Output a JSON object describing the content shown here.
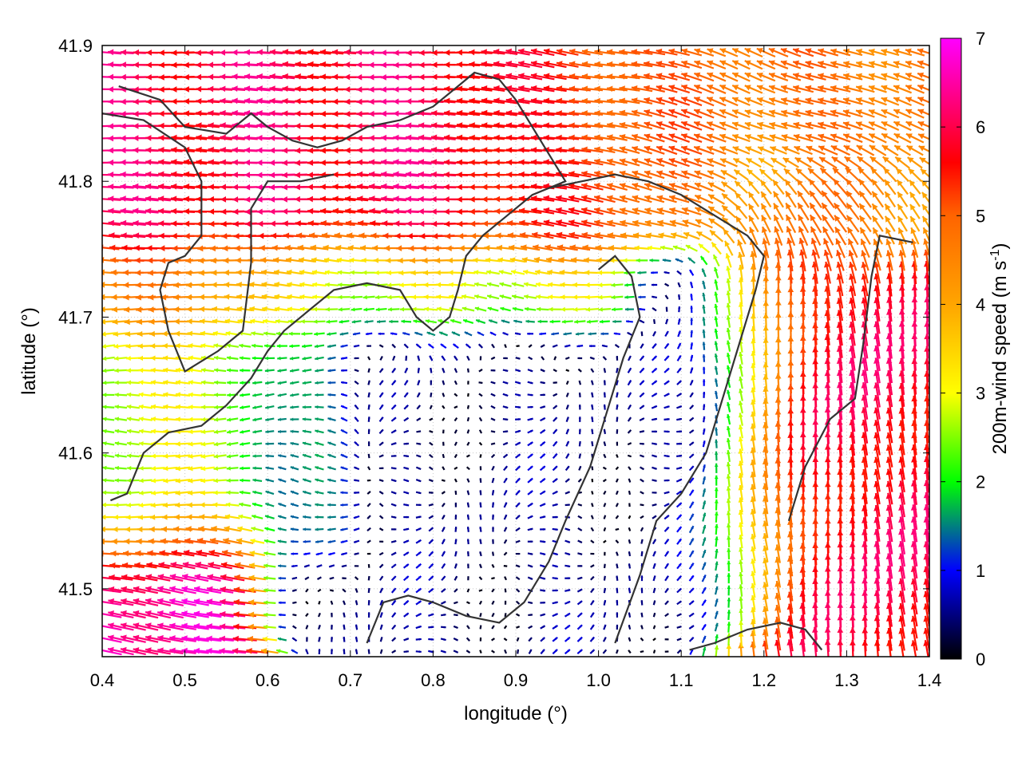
{
  "chart_data": {
    "type": "vector_field",
    "title": "",
    "xlabel": "longitude (°)",
    "ylabel": "latitude (°)",
    "xlim": [
      0.4,
      1.4
    ],
    "ylim": [
      41.45,
      41.9
    ],
    "x_ticks": [
      0.4,
      0.5,
      0.6,
      0.7,
      0.8,
      0.9,
      1.0,
      1.1,
      1.2,
      1.3,
      1.4
    ],
    "x_tick_labels": [
      "0.4",
      "0.5",
      "0.6",
      "0.7",
      "0.8",
      "0.9",
      "1.0",
      "1.1",
      "1.2",
      "1.3",
      "1.4"
    ],
    "y_ticks": [
      41.5,
      41.6,
      41.7,
      41.8,
      41.9
    ],
    "y_tick_labels": [
      "41.5",
      "41.6",
      "41.7",
      "41.8",
      "41.9"
    ],
    "grid": true,
    "colorbar": {
      "label_main": "200m-wind speed (m s",
      "label_sup": "-1",
      "label_end": ")",
      "range": [
        0,
        7
      ],
      "ticks": [
        0,
        1,
        2,
        3,
        4,
        5,
        6,
        7
      ],
      "tick_labels": [
        "0",
        "1",
        "2",
        "3",
        "4",
        "5",
        "6",
        "7"
      ],
      "colormap": [
        {
          "value": 0,
          "color": "#000000"
        },
        {
          "value": 1,
          "color": "#0000ff"
        },
        {
          "value": 2,
          "color": "#00ff00"
        },
        {
          "value": 3,
          "color": "#ffff00"
        },
        {
          "value": 4,
          "color": "#ffa500"
        },
        {
          "value": 5,
          "color": "#ff6400"
        },
        {
          "value": 5.6,
          "color": "#ff0000"
        },
        {
          "value": 7,
          "color": "#ff00ff"
        }
      ]
    },
    "field_regions": [
      {
        "name": "northern-westward-jet",
        "lon": [
          0.4,
          1.0
        ],
        "lat": [
          41.72,
          41.9
        ],
        "u": -6.0,
        "v": 0.2
      },
      {
        "name": "northeast-flow",
        "lon": [
          0.95,
          1.4
        ],
        "lat": [
          41.78,
          41.9
        ],
        "u": -4.5,
        "v": 1.5
      },
      {
        "name": "central-calm",
        "lon": [
          0.65,
          1.15
        ],
        "lat": [
          41.48,
          41.72
        ],
        "u": 0.3,
        "v": 0.2
      },
      {
        "name": "western-moderate",
        "lon": [
          0.4,
          0.65
        ],
        "lat": [
          41.55,
          41.72
        ],
        "u": -2.8,
        "v": 0.0
      },
      {
        "name": "eastern-northward-jet",
        "lon": [
          1.2,
          1.4
        ],
        "lat": [
          41.45,
          41.78
        ],
        "u": -0.6,
        "v": 5.8
      },
      {
        "name": "southwest-jet",
        "lon": [
          0.4,
          0.55
        ],
        "lat": [
          41.45,
          41.52
        ],
        "u": -6.5,
        "v": 1.0
      }
    ],
    "coastlines": [
      [
        [
          0.42,
          41.87
        ],
        [
          0.47,
          41.86
        ],
        [
          0.5,
          41.84
        ],
        [
          0.55,
          41.835
        ],
        [
          0.58,
          41.85
        ],
        [
          0.6,
          41.84
        ],
        [
          0.63,
          41.83
        ],
        [
          0.66,
          41.825
        ],
        [
          0.69,
          41.83
        ],
        [
          0.72,
          41.84
        ],
        [
          0.76,
          41.845
        ],
        [
          0.8,
          41.855
        ],
        [
          0.83,
          41.87
        ],
        [
          0.85,
          41.88
        ],
        [
          0.88,
          41.875
        ],
        [
          0.9,
          41.86
        ],
        [
          0.93,
          41.83
        ],
        [
          0.96,
          41.8
        ],
        [
          0.92,
          41.79
        ],
        [
          0.89,
          41.775
        ],
        [
          0.86,
          41.76
        ],
        [
          0.84,
          41.745
        ],
        [
          0.83,
          41.72
        ],
        [
          0.82,
          41.7
        ],
        [
          0.8,
          41.69
        ],
        [
          0.78,
          41.7
        ],
        [
          0.76,
          41.72
        ],
        [
          0.72,
          41.725
        ],
        [
          0.68,
          41.72
        ],
        [
          0.65,
          41.705
        ],
        [
          0.62,
          41.69
        ],
        [
          0.6,
          41.675
        ],
        [
          0.58,
          41.655
        ],
        [
          0.55,
          41.635
        ],
        [
          0.52,
          41.62
        ],
        [
          0.48,
          41.615
        ],
        [
          0.45,
          41.6
        ],
        [
          0.43,
          41.57
        ],
        [
          0.41,
          41.565
        ]
      ],
      [
        [
          0.4,
          41.85
        ],
        [
          0.45,
          41.845
        ],
        [
          0.5,
          41.825
        ],
        [
          0.52,
          41.8
        ],
        [
          0.52,
          41.76
        ],
        [
          0.5,
          41.745
        ],
        [
          0.48,
          41.74
        ],
        [
          0.47,
          41.72
        ],
        [
          0.48,
          41.69
        ],
        [
          0.5,
          41.66
        ],
        [
          0.54,
          41.675
        ],
        [
          0.57,
          41.69
        ],
        [
          0.58,
          41.74
        ],
        [
          0.58,
          41.78
        ],
        [
          0.6,
          41.8
        ],
        [
          0.64,
          41.8
        ],
        [
          0.68,
          41.805
        ]
      ],
      [
        [
          1.02,
          41.46
        ],
        [
          1.05,
          41.51
        ],
        [
          1.07,
          41.55
        ],
        [
          1.1,
          41.57
        ],
        [
          1.13,
          41.6
        ],
        [
          1.15,
          41.64
        ],
        [
          1.17,
          41.68
        ],
        [
          1.19,
          41.72
        ],
        [
          1.2,
          41.745
        ],
        [
          1.18,
          41.76
        ],
        [
          1.14,
          41.775
        ],
        [
          1.1,
          41.79
        ],
        [
          1.06,
          41.8
        ],
        [
          1.02,
          41.805
        ],
        [
          0.98,
          41.8
        ],
        [
          0.94,
          41.795
        ]
      ],
      [
        [
          1.23,
          41.55
        ],
        [
          1.25,
          41.59
        ],
        [
          1.28,
          41.625
        ],
        [
          1.31,
          41.64
        ],
        [
          1.32,
          41.68
        ],
        [
          1.33,
          41.73
        ],
        [
          1.34,
          41.76
        ],
        [
          1.38,
          41.755
        ]
      ],
      [
        [
          1.11,
          41.455
        ],
        [
          1.14,
          41.46
        ],
        [
          1.18,
          41.47
        ],
        [
          1.22,
          41.475
        ],
        [
          1.25,
          41.47
        ],
        [
          1.27,
          41.455
        ]
      ],
      [
        [
          0.72,
          41.46
        ],
        [
          0.74,
          41.49
        ],
        [
          0.77,
          41.495
        ],
        [
          0.8,
          41.49
        ],
        [
          0.84,
          41.48
        ],
        [
          0.88,
          41.475
        ],
        [
          0.91,
          41.49
        ],
        [
          0.94,
          41.52
        ],
        [
          0.96,
          41.55
        ],
        [
          0.99,
          41.59
        ],
        [
          1.01,
          41.63
        ],
        [
          1.03,
          41.67
        ],
        [
          1.05,
          41.7
        ],
        [
          1.04,
          41.73
        ],
        [
          1.02,
          41.745
        ],
        [
          1.0,
          41.735
        ]
      ]
    ]
  }
}
